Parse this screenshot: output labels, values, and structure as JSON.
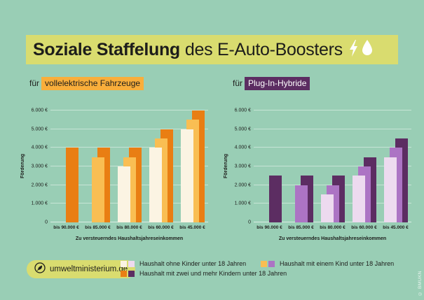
{
  "page": {
    "background": "#99CEB5",
    "copyright": "© BMUKN"
  },
  "title": {
    "highlight_bg": "#D9DC6F",
    "bold_text": "Soziale Staffelung",
    "regular_text": "des E-Auto-Boosters",
    "icons": [
      "lightning-icon",
      "droplet-icon"
    ]
  },
  "footer": {
    "badge_label": "umweltministerium.de",
    "badge_bg": "#D9DC6F"
  },
  "legend": {
    "items": [
      {
        "label": "Haushalt ohne Kinder unter 18 Jahren",
        "swatches": [
          "#FBF4E3",
          "#EDDAEF"
        ]
      },
      {
        "label": "Haushalt mit einem Kind unter 18 Jahren",
        "swatches": [
          "#F9BE53",
          "#AC74C4"
        ]
      },
      {
        "label": "Haushalt mit zwei und mehr Kindern unter 18 Jahren",
        "swatches": [
          "#E97E13",
          "#5C2D62"
        ]
      }
    ]
  },
  "chart_data": [
    {
      "type": "bar",
      "title": "für vollelektrische Fahrzeuge",
      "title_prefix": "für",
      "title_tag": "vollelektrische Fahrzeuge",
      "tag_bg": "#F9AE3B",
      "tag_fg": "#1D1D1B",
      "xlabel": "Zu versteuerndes Haushaltsjahreseinkommen",
      "ylabel": "Förderung",
      "ylim": [
        0,
        6000
      ],
      "ytick_step": 1000,
      "ytick_labels": [
        "0",
        "1.000 €",
        "2.000 €",
        "3.000 €",
        "4.000 €",
        "5.000 €",
        "6.000 €"
      ],
      "grid": true,
      "legend_position": "bottom-shared",
      "categories": [
        "bis 90.000 €",
        "bis 85.000 €",
        "bis 80.000 €",
        "bis 60.000 €",
        "bis 45.000 €"
      ],
      "series": [
        {
          "name": "Haushalt ohne Kinder unter 18 Jahren",
          "color": "#FBF4E3",
          "values": [
            null,
            null,
            3000,
            4000,
            5000
          ]
        },
        {
          "name": "Haushalt mit einem Kind unter 18 Jahren",
          "color": "#F9BE53",
          "values": [
            null,
            3500,
            3500,
            4500,
            5500
          ]
        },
        {
          "name": "Haushalt mit zwei und mehr Kindern unter 18 Jahren",
          "color": "#E97E13",
          "values": [
            4000,
            4000,
            4000,
            5000,
            6000
          ]
        }
      ]
    },
    {
      "type": "bar",
      "title": "für Plug-In-Hybride",
      "title_prefix": "für",
      "title_tag": "Plug-In-Hybride",
      "tag_bg": "#5C2D62",
      "tag_fg": "#FFFFFF",
      "xlabel": "Zu versteuerndes Haushaltsjahreseinkommen",
      "ylabel": "Förderung",
      "ylim": [
        0,
        6000
      ],
      "ytick_step": 1000,
      "ytick_labels": [
        "0",
        "1.000 €",
        "2.000 €",
        "3.000 €",
        "4.000 €",
        "5.000 €",
        "6.000 €"
      ],
      "grid": true,
      "legend_position": "bottom-shared",
      "categories": [
        "bis 90.000 €",
        "bis 85.000 €",
        "bis 80.000 €",
        "bis 60.000 €",
        "bis 45.000 €"
      ],
      "series": [
        {
          "name": "Haushalt ohne Kinder unter 18 Jahren",
          "color": "#EDDAEF",
          "values": [
            null,
            null,
            1500,
            2500,
            3500
          ]
        },
        {
          "name": "Haushalt mit einem Kind unter 18 Jahren",
          "color": "#AC74C4",
          "values": [
            null,
            2000,
            2000,
            3000,
            4000
          ]
        },
        {
          "name": "Haushalt mit zwei und mehr Kindern unter 18 Jahren",
          "color": "#5C2D62",
          "values": [
            2500,
            2500,
            2500,
            3500,
            4500
          ]
        }
      ]
    }
  ]
}
